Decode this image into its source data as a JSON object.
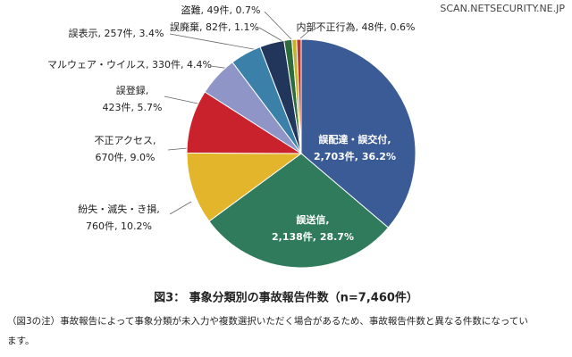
{
  "chart_data": {
    "type": "pie",
    "title": "図3： 事象分類別の事故報告件数（n=7,460件）",
    "note_lines": [
      "（図3の注）事故報告によって事象分類が未入力や複数選択いただく場合があるため、事故報告件数と異なる件数になってい",
      "ます。"
    ],
    "watermark": "SCAN.NETSECURITY.NE.JP",
    "labels": [
      [
        "誤配達・誤交付,",
        "2,703件, 36.2%"
      ],
      [
        "誤送信,",
        "2,138件, 28.7%"
      ],
      [
        "紛失・滅失・き損,",
        "760件, 10.2%"
      ],
      [
        "不正アクセス,",
        "670件, 9.0%"
      ],
      [
        "誤登録,",
        "423件, 5.7%"
      ],
      [
        "マルウェア・ウイルス, 330件, 4.4%"
      ],
      [
        "誤表示, 257件, 3.4%"
      ],
      [
        "誤廃棄, 82件, 1.1%"
      ],
      [
        "盗難, 49件, 0.7%"
      ],
      [
        "内部不正行為, 48件, 0.6%"
      ]
    ],
    "counts": [
      2703,
      2138,
      760,
      670,
      423,
      330,
      257,
      82,
      49,
      48
    ],
    "values": [
      36.2,
      28.7,
      10.2,
      9.0,
      5.7,
      4.4,
      3.4,
      1.1,
      0.7,
      0.6
    ],
    "colors": [
      "#3b5b96",
      "#2f7b5c",
      "#e3b52b",
      "#c9222c",
      "#9095c7",
      "#3a80a9",
      "#22365c",
      "#2f6c3b",
      "#c6b12a",
      "#c0392b"
    ]
  }
}
